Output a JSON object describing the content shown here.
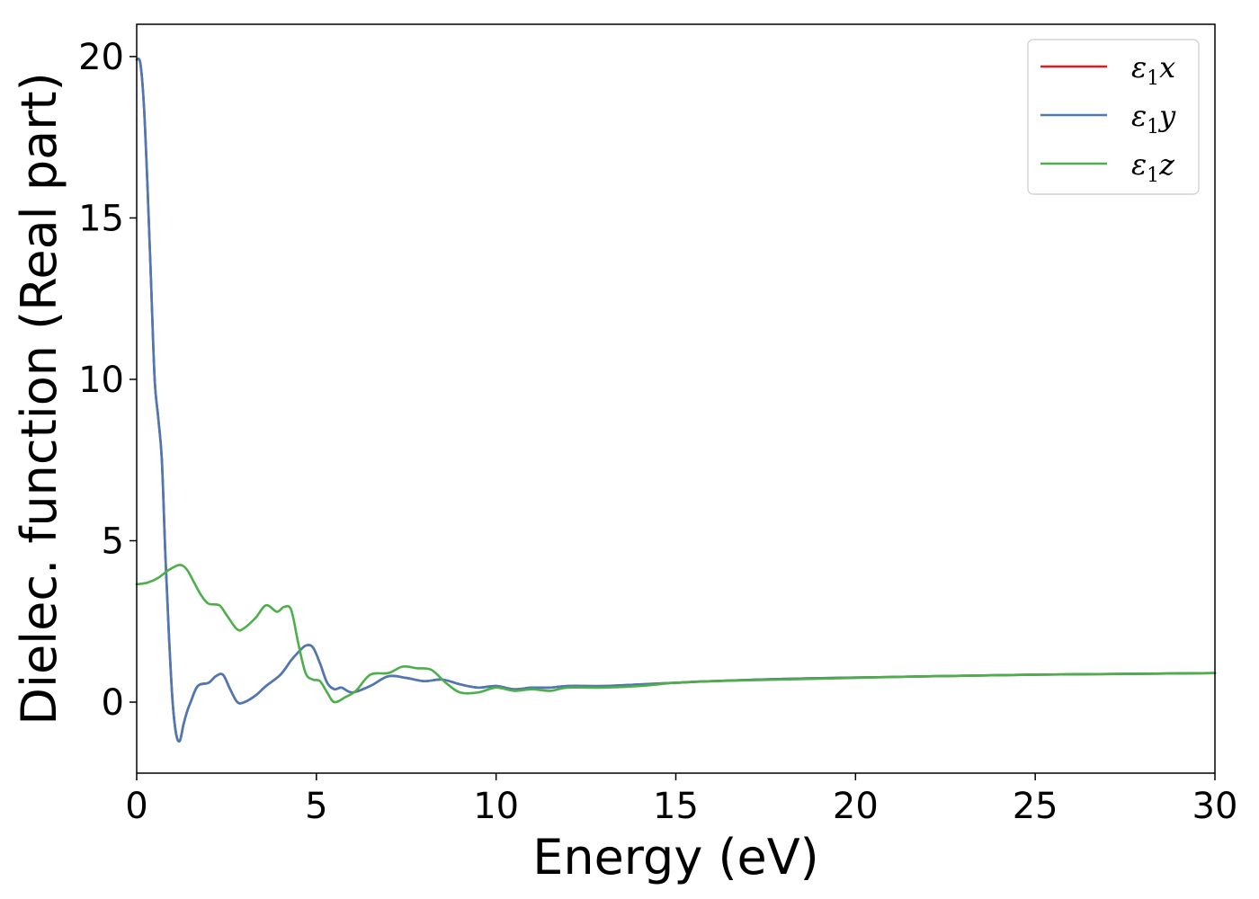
{
  "chart_data": {
    "type": "line",
    "xlabel": "Energy (eV)",
    "ylabel": "Dielec. function (Real part)",
    "xlim": [
      0,
      30
    ],
    "ylim": [
      -2.2,
      21
    ],
    "xticks": [
      0,
      5,
      10,
      15,
      20,
      25,
      30
    ],
    "xtick_labels": [
      "0",
      "5",
      "10",
      "15",
      "20",
      "25",
      "30"
    ],
    "yticks": [
      0,
      5,
      10,
      15,
      20
    ],
    "ytick_labels": [
      "0",
      "5",
      "10",
      "15",
      "20"
    ],
    "grid": false,
    "legend_position": "top-right",
    "series": [
      {
        "name": "ε1x",
        "legend_base": "ε",
        "legend_sub": "1",
        "legend_suffix": "x",
        "color": "#e41a1c",
        "x": [
          0,
          0.1,
          0.2,
          0.3,
          0.4,
          0.5,
          0.6,
          0.7,
          0.8,
          0.9,
          1.0,
          1.1,
          1.2,
          1.3,
          1.4,
          1.5,
          1.7,
          2.0,
          2.2,
          2.4,
          2.6,
          2.8,
          3.0,
          3.3,
          3.6,
          4.0,
          4.3,
          4.5,
          4.7,
          4.9,
          5.1,
          5.3,
          5.5,
          5.7,
          6.0,
          6.5,
          7.0,
          7.5,
          8.0,
          8.5,
          9.0,
          9.5,
          10.0,
          10.5,
          11.0,
          11.5,
          12.0,
          13.0,
          14.0,
          15.0,
          16.0,
          18.0,
          20.0,
          22.0,
          25.0,
          28.0,
          30.0
        ],
        "y": [
          19.9,
          19.8,
          18.5,
          16.0,
          13.0,
          10.0,
          8.8,
          7.5,
          4.5,
          2.0,
          0.0,
          -1.0,
          -1.2,
          -0.7,
          -0.3,
          0.0,
          0.5,
          0.6,
          0.8,
          0.85,
          0.4,
          0.0,
          0.0,
          0.2,
          0.5,
          0.85,
          1.3,
          1.55,
          1.75,
          1.7,
          1.2,
          0.6,
          0.4,
          0.45,
          0.3,
          0.5,
          0.8,
          0.75,
          0.65,
          0.7,
          0.55,
          0.45,
          0.5,
          0.4,
          0.45,
          0.45,
          0.5,
          0.5,
          0.55,
          0.6,
          0.65,
          0.72,
          0.76,
          0.8,
          0.85,
          0.88,
          0.9
        ]
      },
      {
        "name": "ε1y",
        "legend_base": "ε",
        "legend_sub": "1",
        "legend_suffix": "y",
        "color": "#4a7ab5",
        "x": [
          0,
          0.1,
          0.2,
          0.3,
          0.4,
          0.5,
          0.6,
          0.7,
          0.8,
          0.9,
          1.0,
          1.1,
          1.2,
          1.3,
          1.4,
          1.5,
          1.7,
          2.0,
          2.2,
          2.4,
          2.6,
          2.8,
          3.0,
          3.3,
          3.6,
          4.0,
          4.3,
          4.5,
          4.7,
          4.9,
          5.1,
          5.3,
          5.5,
          5.7,
          6.0,
          6.5,
          7.0,
          7.5,
          8.0,
          8.5,
          9.0,
          9.5,
          10.0,
          10.5,
          11.0,
          11.5,
          12.0,
          13.0,
          14.0,
          15.0,
          16.0,
          18.0,
          20.0,
          22.0,
          25.0,
          28.0,
          30.0
        ],
        "y": [
          19.9,
          19.8,
          18.5,
          16.0,
          13.0,
          10.0,
          8.8,
          7.5,
          4.5,
          2.0,
          0.0,
          -1.0,
          -1.2,
          -0.7,
          -0.3,
          0.0,
          0.5,
          0.6,
          0.8,
          0.85,
          0.4,
          0.0,
          0.0,
          0.2,
          0.5,
          0.85,
          1.3,
          1.55,
          1.75,
          1.7,
          1.2,
          0.6,
          0.4,
          0.45,
          0.3,
          0.5,
          0.8,
          0.75,
          0.65,
          0.7,
          0.55,
          0.45,
          0.5,
          0.4,
          0.45,
          0.45,
          0.5,
          0.5,
          0.55,
          0.6,
          0.65,
          0.72,
          0.76,
          0.8,
          0.85,
          0.88,
          0.9
        ]
      },
      {
        "name": "ε1z",
        "legend_base": "ε",
        "legend_sub": "1",
        "legend_suffix": "z",
        "color": "#4daf4a",
        "x": [
          0,
          0.3,
          0.6,
          0.9,
          1.2,
          1.4,
          1.6,
          1.8,
          2.0,
          2.3,
          2.5,
          2.8,
          3.0,
          3.3,
          3.6,
          3.9,
          4.1,
          4.3,
          4.5,
          4.7,
          4.9,
          5.1,
          5.3,
          5.5,
          5.8,
          6.1,
          6.5,
          7.0,
          7.4,
          7.8,
          8.2,
          8.6,
          9.0,
          9.5,
          10.0,
          10.5,
          11.0,
          11.5,
          12.0,
          13.0,
          14.0,
          15.0,
          16.0,
          18.0,
          20.0,
          22.0,
          25.0,
          28.0,
          30.0
        ],
        "y": [
          3.65,
          3.7,
          3.85,
          4.1,
          4.25,
          4.1,
          3.7,
          3.3,
          3.05,
          3.0,
          2.7,
          2.25,
          2.3,
          2.6,
          3.0,
          2.8,
          2.95,
          2.85,
          1.8,
          0.9,
          0.7,
          0.65,
          0.3,
          0.0,
          0.15,
          0.35,
          0.85,
          0.9,
          1.1,
          1.05,
          1.0,
          0.6,
          0.3,
          0.3,
          0.45,
          0.35,
          0.4,
          0.35,
          0.45,
          0.45,
          0.5,
          0.6,
          0.65,
          0.7,
          0.75,
          0.8,
          0.85,
          0.88,
          0.9
        ]
      }
    ]
  }
}
